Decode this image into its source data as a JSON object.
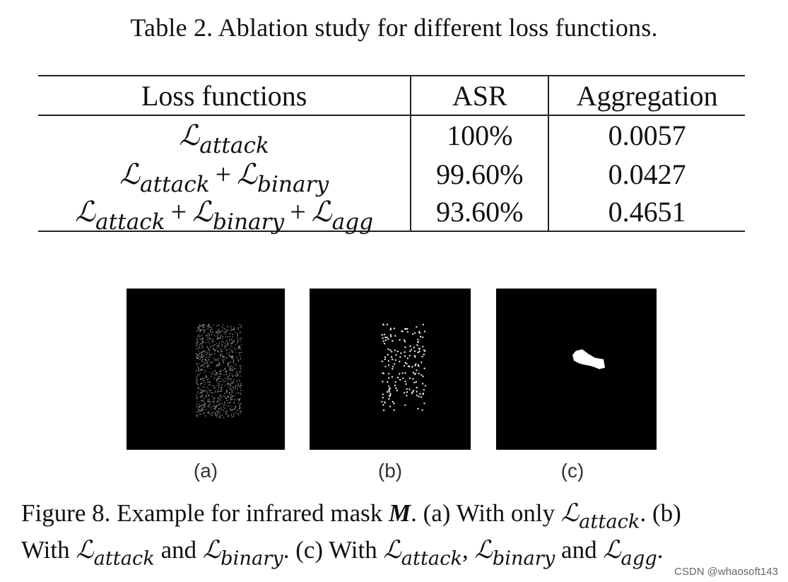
{
  "table": {
    "caption": "Table 2. Ablation study for different loss functions.",
    "headers": [
      "Loss functions",
      "ASR",
      "Aggregation"
    ],
    "script_L": "ℒ",
    "plus": "+",
    "rows": [
      {
        "terms": [
          "attack"
        ],
        "asr": "100%",
        "aggregation": "0.0057"
      },
      {
        "terms": [
          "attack",
          "binary"
        ],
        "asr": "99.60%",
        "aggregation": "0.0427"
      },
      {
        "terms": [
          "attack",
          "binary",
          "agg"
        ],
        "asr": "93.60%",
        "aggregation": "0.4651"
      }
    ]
  },
  "figure": {
    "panel_labels": [
      "(a)",
      "(b)",
      "(c)"
    ],
    "caption": {
      "lead": "Figure 8. Example for infrared mask",
      "symbol_M": "M",
      "a_text": ". (a) With only",
      "b_text": ". (b)",
      "with": "With",
      "and1": "and",
      "c_text": ". (c) With",
      "comma": ",",
      "and2": "and",
      "end": "."
    }
  },
  "watermark": "CSDN @whaosoft143"
}
